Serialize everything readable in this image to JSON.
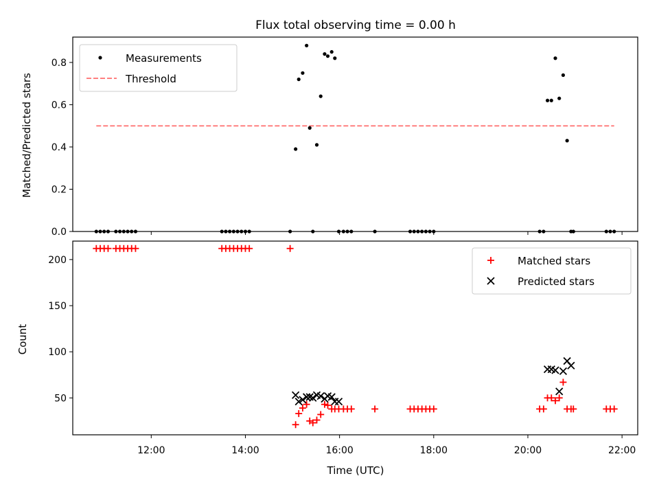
{
  "chart_data": [
    {
      "type": "scatter",
      "title": "Flux total observing time = 0.00 h",
      "xlabel": "",
      "ylabel": "Matched/Predicted stars",
      "ylim": [
        0,
        0.92
      ],
      "xlim": [
        "10:20",
        "22:20"
      ],
      "yticks": [
        0.0,
        0.2,
        0.4,
        0.6,
        0.8
      ],
      "ytick_labels": [
        "0.0",
        "0.2",
        "0.4",
        "0.6",
        "0.8"
      ],
      "grid": false,
      "legend_position": "upper-left",
      "series": [
        {
          "name": "Measurements",
          "kind": "point",
          "color": "#000000",
          "x": [
            "10:50",
            "10:55",
            "11:00",
            "11:05",
            "11:15",
            "11:20",
            "11:25",
            "11:30",
            "11:35",
            "11:40",
            "13:30",
            "13:35",
            "13:40",
            "13:45",
            "13:50",
            "13:55",
            "14:00",
            "14:05",
            "14:57",
            "15:04",
            "15:08",
            "15:13",
            "15:18",
            "15:22",
            "15:26",
            "15:31",
            "15:36",
            "15:41",
            "15:45",
            "15:50",
            "15:54",
            "15:59",
            "16:05",
            "16:10",
            "16:15",
            "16:45",
            "17:30",
            "17:35",
            "17:40",
            "17:45",
            "17:50",
            "17:55",
            "18:00",
            "20:15",
            "20:20",
            "20:25",
            "20:30",
            "20:35",
            "20:40",
            "20:45",
            "20:50",
            "20:55",
            "20:58",
            "21:40",
            "21:45",
            "21:50"
          ],
          "y": [
            0,
            0,
            0,
            0,
            0,
            0,
            0,
            0,
            0,
            0,
            0,
            0,
            0,
            0,
            0,
            0,
            0,
            0,
            0,
            0.39,
            0.72,
            0.75,
            0.88,
            0.49,
            0,
            0.41,
            0.64,
            0.84,
            0.83,
            0.85,
            0.82,
            0,
            0,
            0,
            0,
            0,
            0,
            0,
            0,
            0,
            0,
            0,
            0,
            0,
            0,
            0.62,
            0.62,
            0.82,
            0.63,
            0.74,
            0.43,
            0,
            0,
            0,
            0,
            0
          ]
        },
        {
          "name": "Threshold",
          "kind": "dashed-line",
          "color": "#ff7f7f",
          "x": [
            "10:50",
            "21:50"
          ],
          "y": [
            0.5,
            0.5
          ]
        }
      ]
    },
    {
      "type": "scatter",
      "title": "",
      "xlabel": "Time (UTC)",
      "ylabel": "Count",
      "ylim": [
        10,
        220
      ],
      "xlim": [
        "10:20",
        "22:20"
      ],
      "xticks": [
        "12:00",
        "14:00",
        "16:00",
        "18:00",
        "20:00",
        "22:00"
      ],
      "yticks": [
        50,
        100,
        150,
        200
      ],
      "ytick_labels": [
        "50",
        "100",
        "150",
        "200"
      ],
      "grid": false,
      "legend_position": "upper-right",
      "series": [
        {
          "name": "Matched stars",
          "marker": "+",
          "color": "#ff0000",
          "x": [
            "10:50",
            "10:55",
            "11:00",
            "11:05",
            "11:15",
            "11:20",
            "11:25",
            "11:30",
            "11:35",
            "11:40",
            "13:30",
            "13:35",
            "13:40",
            "13:45",
            "13:50",
            "13:55",
            "14:00",
            "14:05",
            "14:57",
            "15:04",
            "15:08",
            "15:13",
            "15:18",
            "15:22",
            "15:26",
            "15:31",
            "15:36",
            "15:41",
            "15:45",
            "15:50",
            "15:54",
            "15:59",
            "16:05",
            "16:10",
            "16:15",
            "16:45",
            "17:30",
            "17:35",
            "17:40",
            "17:45",
            "17:50",
            "17:55",
            "18:00",
            "20:15",
            "20:20",
            "20:25",
            "20:30",
            "20:35",
            "20:40",
            "20:45",
            "20:50",
            "20:55",
            "20:58",
            "21:40",
            "21:45",
            "21:50"
          ],
          "y": [
            212,
            212,
            212,
            212,
            212,
            212,
            212,
            212,
            212,
            212,
            212,
            212,
            212,
            212,
            212,
            212,
            212,
            212,
            212,
            21,
            33,
            39,
            43,
            25,
            23,
            26,
            32,
            43,
            42,
            38,
            38,
            38,
            38,
            38,
            38,
            38,
            38,
            38,
            38,
            38,
            38,
            38,
            38,
            38,
            38,
            50,
            50,
            47,
            50,
            67,
            38,
            38,
            38,
            38,
            38,
            38
          ]
        },
        {
          "name": "Predicted stars",
          "marker": "x",
          "color": "#000000",
          "x": [
            "15:04",
            "15:08",
            "15:13",
            "15:18",
            "15:22",
            "15:26",
            "15:31",
            "15:36",
            "15:41",
            "15:45",
            "15:50",
            "15:54",
            "15:59",
            "20:25",
            "20:30",
            "20:35",
            "20:40",
            "20:45",
            "20:50",
            "20:55"
          ],
          "y": [
            53,
            46,
            48,
            51,
            51,
            50,
            53,
            52,
            49,
            52,
            51,
            46,
            46,
            81,
            81,
            80,
            57,
            79,
            90,
            85
          ]
        }
      ]
    }
  ]
}
